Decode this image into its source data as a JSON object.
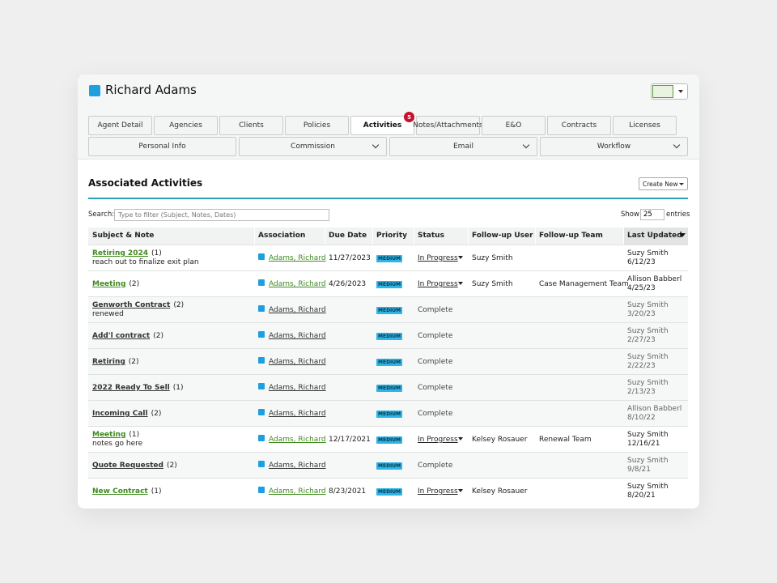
{
  "header": {
    "title": "Richard Adams"
  },
  "tabs": [
    "Agent Detail",
    "Agencies",
    "Clients",
    "Policies",
    "Activities",
    "Notes/Attachments",
    "E&O",
    "Contracts",
    "Licenses"
  ],
  "active_tab_badge": "5",
  "menus": [
    "Personal Info",
    "Commission",
    "Email",
    "Workflow"
  ],
  "section": {
    "title": "Associated Activities",
    "button": "Create New"
  },
  "search": {
    "label": "Search:",
    "placeholder": "Type to filter (Subject, Notes, Dates)"
  },
  "length": {
    "before": "Show",
    "value": "25",
    "after": "entries"
  },
  "table": {
    "columns": [
      "Subject & Note",
      "Association",
      "Due Date",
      "Priority",
      "Status",
      "Follow-up User",
      "Follow-up Team",
      "Last Updated"
    ],
    "rows": [
      {
        "subject": "Retiring 2024",
        "count": "(1)",
        "note": "reach out to finalize exit plan",
        "association": "Adams, Richard",
        "due": "11/27/2023",
        "priority": "MEDIUM",
        "status": "In Progress",
        "user": "Suzy Smith",
        "updated_by": "Suzy Smith",
        "updated": "6/12/23"
      },
      {
        "subject": "Meeting",
        "count": "(2)",
        "association": "Adams, Richard",
        "due": "4/26/2023",
        "priority": "MEDIUM",
        "status": "In Progress",
        "user": "Suzy Smith",
        "team": "Case Management Team",
        "updated_by": "Allison Babberl",
        "updated": "4/25/23"
      },
      {
        "subject": "Genworth Contract",
        "count": "(2)",
        "note": "renewed",
        "association": "Adams, Richard",
        "priority": "MEDIUM",
        "status": "Complete",
        "updated_by": "Suzy Smith",
        "updated": "3/20/23"
      },
      {
        "subject": "Add'l contract",
        "count": "(2)",
        "association": "Adams, Richard",
        "priority": "MEDIUM",
        "status": "Complete",
        "updated_by": "Suzy Smith",
        "updated": "2/27/23"
      },
      {
        "subject": "Retiring",
        "count": "(2)",
        "association": "Adams, Richard",
        "priority": "MEDIUM",
        "status": "Complete",
        "updated_by": "Suzy Smith",
        "updated": "2/22/23"
      },
      {
        "subject": "2022 Ready To Sell",
        "count": "(1)",
        "association": "Adams, Richard",
        "priority": "MEDIUM",
        "status": "Complete",
        "updated_by": "Suzy Smith",
        "updated": "2/13/23"
      },
      {
        "subject": "Incoming Call",
        "count": "(2)",
        "association": "Adams, Richard",
        "priority": "MEDIUM",
        "status": "Complete",
        "updated_by": "Allison Babberl",
        "updated": "8/10/22"
      },
      {
        "subject": "Meeting",
        "count": "(1)",
        "note": "notes go here",
        "association": "Adams, Richard",
        "due": "12/17/2021",
        "priority": "MEDIUM",
        "status": "In Progress",
        "user": "Kelsey Rosauer",
        "team": "Renewal Team",
        "updated_by": "Suzy Smith",
        "updated": "12/16/21"
      },
      {
        "subject": "Quote Requested",
        "count": "(2)",
        "association": "Adams, Richard",
        "priority": "MEDIUM",
        "status": "Complete",
        "updated_by": "Suzy Smith",
        "updated": "9/8/21"
      },
      {
        "subject": "New Contract",
        "count": "(1)",
        "association": "Adams, Richard",
        "due": "8/23/2021",
        "priority": "MEDIUM",
        "status": "In Progress",
        "user": "Kelsey Rosauer",
        "updated_by": "Suzy Smith",
        "updated": "8/20/21"
      }
    ]
  }
}
